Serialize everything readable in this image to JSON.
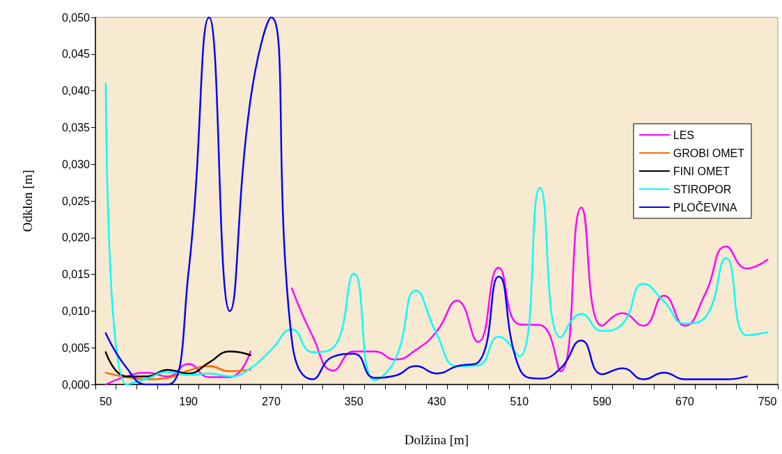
{
  "chart_data": {
    "type": "line",
    "xlabel": "Dolžina [m]",
    "ylabel": "Odklon [m]",
    "categories": [
      "50",
      null,
      null,
      null,
      "190",
      null,
      null,
      null,
      "270",
      null,
      null,
      null,
      "350",
      null,
      null,
      null,
      "430",
      null,
      null,
      null,
      "510",
      null,
      null,
      null,
      "590",
      null,
      null,
      null,
      "670",
      null,
      null,
      null,
      "750"
    ],
    "ylim": [
      0,
      0.05
    ],
    "yticks": [
      {
        "value": 0,
        "label": "0,000"
      },
      {
        "value": 0.005,
        "label": "0,005"
      },
      {
        "value": 0.01,
        "label": "0,010"
      },
      {
        "value": 0.015,
        "label": "0,015"
      },
      {
        "value": 0.02,
        "label": "0,020"
      },
      {
        "value": 0.025,
        "label": "0,025"
      },
      {
        "value": 0.03,
        "label": "0,030"
      },
      {
        "value": 0.035,
        "label": "0,035"
      },
      {
        "value": 0.04,
        "label": "0,040"
      },
      {
        "value": 0.045,
        "label": "0,045"
      },
      {
        "value": 0.05,
        "label": "0,050"
      }
    ],
    "series": [
      {
        "name": "LES",
        "color": "#ff00ff",
        "values": [
          0,
          0.0011,
          0.0016,
          0.0011,
          0.0028,
          0.001,
          0.001,
          0.0045,
          null,
          0.0131,
          0.0066,
          0.0019,
          0.0045,
          0.0045,
          0.0034,
          0.0047,
          0.0072,
          0.0114,
          0.0058,
          0.0159,
          0.0082,
          0.0081,
          0.0018,
          0.0241,
          0.008,
          0.0097,
          0.008,
          0.0121,
          0.008,
          0.0124,
          0.0188,
          0.0158,
          0.017
        ]
      },
      {
        "name": "GROBI OMET",
        "color": "#ff6600",
        "values": [
          0.0016,
          0.001,
          0.0007,
          0.0009,
          0.0019,
          0.0025,
          0.0018,
          0.002,
          null,
          null,
          null,
          null,
          null,
          null,
          null,
          null,
          null,
          null,
          null,
          null,
          null,
          null,
          null,
          null,
          null,
          null,
          null,
          null,
          null,
          null,
          null,
          null,
          null
        ]
      },
      {
        "name": "FINI OMET",
        "color": "#000000",
        "values": [
          0.0044,
          0.0011,
          0.0011,
          0.002,
          0.0015,
          0.003,
          0.0045,
          0.004,
          null,
          null,
          null,
          null,
          null,
          null,
          null,
          null,
          null,
          null,
          null,
          null,
          null,
          null,
          null,
          null,
          null,
          null,
          null,
          null,
          null,
          null,
          null,
          null,
          null
        ]
      },
      {
        "name": "STIROPOR",
        "color": "#00ffff",
        "values": [
          0.041,
          0,
          0.0008,
          0.0017,
          0.0013,
          0.0015,
          0.0011,
          0.0022,
          0.0047,
          0.0075,
          0.0044,
          0.005,
          0.0151,
          0.0006,
          0.0034,
          0.0128,
          0.0069,
          0.0025,
          0.0026,
          0.0065,
          0.0038,
          0.0268,
          0.0064,
          0.0096,
          0.0073,
          0.0083,
          0.0137,
          0.0113,
          0.0083,
          0.0092,
          0.0172,
          0.0067,
          0.0071
        ]
      },
      {
        "name": "PLOČEVINA",
        "color": "#0000ff",
        "values": [
          0.007,
          0.0023,
          0,
          0,
          0.0152,
          0.05,
          0.01,
          0.0388,
          0.05,
          0.006,
          0.0007,
          0.0038,
          0.0042,
          0.0009,
          0.0012,
          0.0025,
          0.0015,
          0.0025,
          0.003,
          0.0147,
          0.0022,
          0.0008,
          0.0022,
          0.006,
          0.0014,
          0.0022,
          0.0007,
          0.0016,
          0.0007,
          0.0007,
          0.0007,
          0.0011,
          null
        ]
      }
    ],
    "legend": "right",
    "grid": false,
    "marker": "none"
  }
}
